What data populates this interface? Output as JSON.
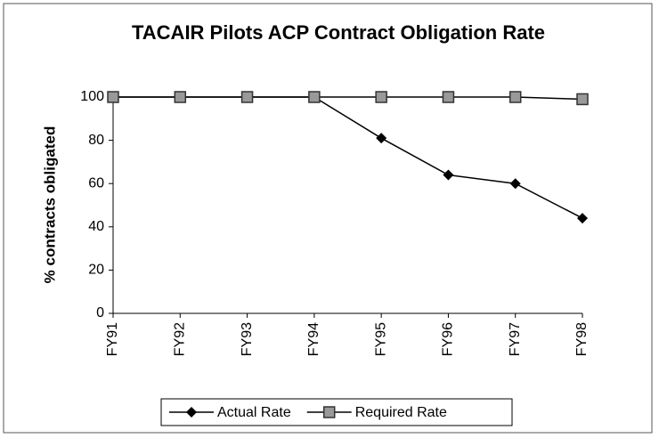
{
  "chart_data": {
    "type": "line",
    "title": "TACAIR Pilots ACP Contract Obligation Rate",
    "y_label": "% contracts obligated",
    "categories": [
      "FY91",
      "FY92",
      "FY93",
      "FY94",
      "FY95",
      "FY96",
      "FY97",
      "FY98"
    ],
    "series": [
      {
        "name": "Actual Rate",
        "color": "#000000",
        "marker": "diamond",
        "values": [
          100,
          100,
          100,
          100,
          81,
          64,
          60,
          44
        ]
      },
      {
        "name": "Required Rate",
        "color": "#000000",
        "marker": "square",
        "values": [
          100,
          100,
          100,
          100,
          100,
          100,
          100,
          99
        ]
      }
    ],
    "ylim": [
      0,
      100
    ],
    "yticks": [
      0,
      20,
      40,
      60,
      80,
      100
    ],
    "grid": false,
    "legend": "bottom"
  }
}
